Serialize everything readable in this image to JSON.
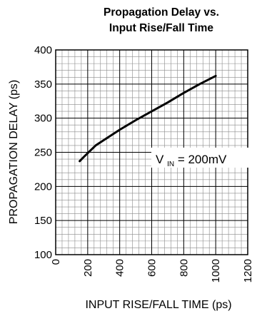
{
  "chart_data": {
    "type": "line",
    "title": "Propagation Delay vs.",
    "subtitle": "Input Rise/Fall Time",
    "xlabel": "INPUT RISE/FALL TIME (ps)",
    "ylabel": "PROPAGATION DELAY (ps)",
    "xlim": [
      0,
      1200
    ],
    "ylim": [
      100,
      400
    ],
    "xticks": [
      "0",
      "200",
      "400",
      "600",
      "800",
      "1000",
      "1200"
    ],
    "yticks": [
      "100",
      "150",
      "200",
      "250",
      "300",
      "350",
      "400"
    ],
    "grid": true,
    "annotation": {
      "main": "V",
      "sub": "IN",
      "rest": " = 200mV"
    },
    "series": [
      {
        "x": [
          150,
          175,
          250,
          400,
          500,
          600,
          700,
          800,
          900,
          1000
        ],
        "values": [
          237,
          243,
          260,
          283,
          297,
          310,
          323,
          337,
          350,
          362
        ]
      }
    ]
  }
}
